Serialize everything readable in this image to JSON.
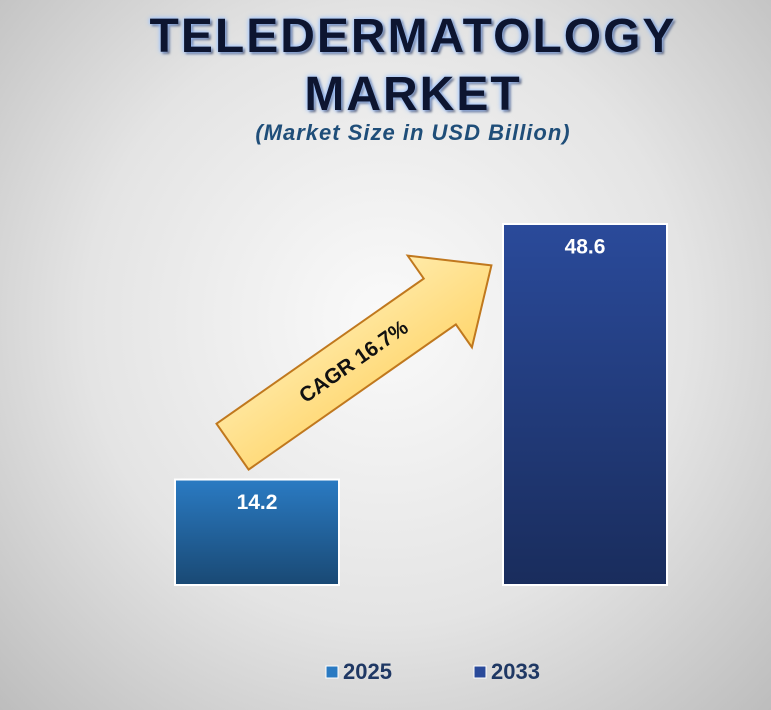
{
  "chart_data": {
    "type": "bar",
    "title": "TELEDERMATOLOGY MARKET",
    "subtitle": "(Market Size in USD Billion)",
    "annotation": "CAGR 16.7%",
    "series": [
      {
        "name": "2025",
        "color": "#2a7ac2",
        "values": [
          14.2
        ]
      },
      {
        "name": "2033",
        "color": "#2a4a9a",
        "values": [
          48.6
        ]
      }
    ]
  }
}
